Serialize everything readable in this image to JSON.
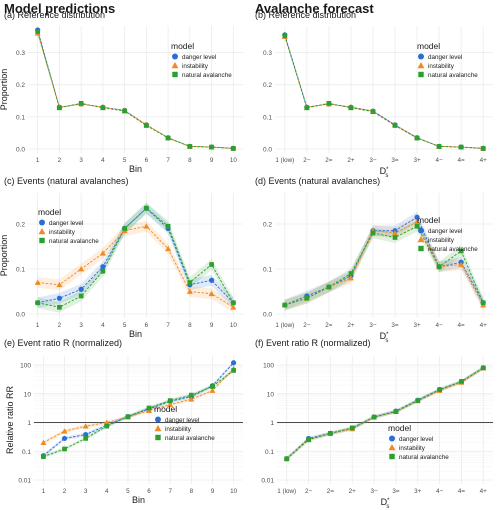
{
  "headers": {
    "left": "Model predictions",
    "right": "Avalanche forecast"
  },
  "legend_labels": {
    "title": "model",
    "items": [
      "danger level",
      "instability",
      "natural avalanche"
    ]
  },
  "colors": {
    "danger level": "#2b6fd6",
    "instability": "#f08a24",
    "natural avalanche": "#2ca02c",
    "grid": "#ebebeb",
    "refline": "#333333"
  },
  "chart_data": [
    {
      "id": "a",
      "type": "line",
      "title": "(a) Reference distribution",
      "xlabel": "Bin",
      "ylabel": "Proportion",
      "categories": [
        "1",
        "2",
        "3",
        "4",
        "5",
        "6",
        "7",
        "8",
        "9",
        "10"
      ],
      "ylim": [
        0,
        0.37
      ],
      "yticks": [
        0,
        0.1,
        0.2,
        0.3
      ],
      "ytick_labels": [
        "0.0",
        "0.1",
        "0.2",
        "0.3"
      ],
      "legend": "inside",
      "ribbon": false,
      "series": [
        {
          "name": "danger level",
          "values": [
            0.37,
            0.13,
            0.14,
            0.13,
            0.12,
            0.075,
            0.035,
            0.008,
            0.006,
            0.002
          ]
        },
        {
          "name": "instability",
          "values": [
            0.36,
            0.13,
            0.14,
            0.13,
            0.12,
            0.075,
            0.035,
            0.008,
            0.006,
            0.002
          ]
        },
        {
          "name": "natural avalanche",
          "values": [
            0.365,
            0.128,
            0.142,
            0.128,
            0.118,
            0.073,
            0.034,
            0.008,
            0.006,
            0.002
          ]
        }
      ]
    },
    {
      "id": "b",
      "type": "line",
      "title": "(b) Reference distribution",
      "xlabel": "D_s^*",
      "ylabel": "",
      "categories": [
        "1 (low)",
        "2−",
        "2=",
        "2+",
        "3−",
        "3=",
        "3+",
        "4−",
        "4=",
        "4+"
      ],
      "ylim": [
        0,
        0.37
      ],
      "yticks": [
        0,
        0.1,
        0.2,
        0.3
      ],
      "ytick_labels": [
        "0.0",
        "0.1",
        "0.2",
        "0.3"
      ],
      "legend": "inside",
      "ribbon": false,
      "series": [
        {
          "name": "danger level",
          "values": [
            0.355,
            0.13,
            0.14,
            0.13,
            0.118,
            0.075,
            0.035,
            0.008,
            0.006,
            0.002
          ]
        },
        {
          "name": "instability",
          "values": [
            0.35,
            0.13,
            0.14,
            0.13,
            0.118,
            0.075,
            0.035,
            0.008,
            0.006,
            0.002
          ]
        },
        {
          "name": "natural avalanche",
          "values": [
            0.352,
            0.128,
            0.142,
            0.128,
            0.116,
            0.073,
            0.034,
            0.008,
            0.006,
            0.002
          ]
        }
      ]
    },
    {
      "id": "c",
      "type": "line",
      "title": "(c) Events (natural avalanches)",
      "xlabel": "Bin",
      "ylabel": "Proportion",
      "categories": [
        "1",
        "2",
        "3",
        "4",
        "5",
        "6",
        "7",
        "8",
        "9",
        "10"
      ],
      "ylim": [
        0,
        0.26
      ],
      "yticks": [
        0,
        0.1,
        0.2
      ],
      "ytick_labels": [
        "0.0",
        "0.1",
        "0.2"
      ],
      "legend": "inside",
      "ribbon": true,
      "series": [
        {
          "name": "danger level",
          "values": [
            0.025,
            0.035,
            0.055,
            0.105,
            0.19,
            0.235,
            0.19,
            0.065,
            0.075,
            0.025
          ]
        },
        {
          "name": "instability",
          "values": [
            0.07,
            0.065,
            0.1,
            0.135,
            0.185,
            0.195,
            0.145,
            0.05,
            0.045,
            0.015
          ]
        },
        {
          "name": "natural avalanche",
          "values": [
            0.025,
            0.015,
            0.04,
            0.095,
            0.19,
            0.235,
            0.195,
            0.07,
            0.11,
            0.025
          ]
        }
      ]
    },
    {
      "id": "d",
      "type": "line",
      "title": "(d) Events (natural avalanches)",
      "xlabel": "D_s^*",
      "ylabel": "",
      "categories": [
        "1 (low)",
        "2−",
        "2=",
        "2+",
        "3−",
        "3=",
        "3+",
        "4−",
        "4=",
        "4+"
      ],
      "ylim": [
        0,
        0.26
      ],
      "yticks": [
        0,
        0.1,
        0.2
      ],
      "ytick_labels": [
        "0.0",
        "0.1",
        "0.2"
      ],
      "legend": "inside",
      "ribbon": true,
      "series": [
        {
          "name": "danger level",
          "values": [
            0.02,
            0.04,
            0.06,
            0.085,
            0.185,
            0.185,
            0.215,
            0.105,
            0.115,
            0.025
          ]
        },
        {
          "name": "instability",
          "values": [
            0.02,
            0.035,
            0.06,
            0.08,
            0.185,
            0.18,
            0.205,
            0.105,
            0.11,
            0.02
          ]
        },
        {
          "name": "natural avalanche",
          "values": [
            0.02,
            0.035,
            0.06,
            0.09,
            0.18,
            0.17,
            0.195,
            0.105,
            0.14,
            0.025
          ]
        }
      ]
    },
    {
      "id": "e",
      "type": "line",
      "title": "(e) Event ratio R (normalized)",
      "xlabel": "Bin",
      "ylabel": "Relative ratio RR",
      "categories": [
        "1",
        "2",
        "3",
        "4",
        "5",
        "6",
        "7",
        "8",
        "9",
        "10"
      ],
      "scale": "log",
      "ylim": [
        0.01,
        150
      ],
      "yticks": [
        0.01,
        0.1,
        1,
        10,
        100
      ],
      "ytick_labels": [
        "0.01",
        "0.1",
        "1",
        "10",
        "100"
      ],
      "refline": 1,
      "legend": "bottom-right",
      "ribbon": true,
      "series": [
        {
          "name": "danger level",
          "values": [
            0.07,
            0.28,
            0.38,
            0.8,
            1.6,
            3.0,
            5.5,
            8.0,
            19,
            120
          ]
        },
        {
          "name": "instability",
          "values": [
            0.2,
            0.5,
            0.75,
            1.0,
            1.55,
            2.6,
            4.2,
            6.5,
            13,
            75
          ]
        },
        {
          "name": "natural avalanche",
          "values": [
            0.065,
            0.12,
            0.28,
            0.75,
            1.6,
            3.2,
            5.8,
            9.0,
            18,
            65
          ]
        }
      ]
    },
    {
      "id": "f",
      "type": "line",
      "title": "(f) Event ratio R (normalized)",
      "xlabel": "D_s^*",
      "ylabel": "",
      "categories": [
        "1 (low)",
        "2−",
        "2=",
        "2+",
        "3−",
        "3=",
        "3+",
        "4−",
        "4=",
        "4+"
      ],
      "scale": "log",
      "ylim": [
        0.01,
        150
      ],
      "yticks": [
        0.01,
        0.1,
        1,
        10,
        100
      ],
      "ytick_labels": [
        "0.01",
        "0.1",
        "1",
        "10",
        "100"
      ],
      "refline": 1,
      "legend": "right-middle",
      "ribbon": true,
      "series": [
        {
          "name": "danger level",
          "values": [
            0.055,
            0.28,
            0.42,
            0.62,
            1.55,
            2.5,
            6.0,
            14,
            26,
            80
          ]
        },
        {
          "name": "instability",
          "values": [
            0.055,
            0.26,
            0.42,
            0.6,
            1.55,
            2.4,
            5.7,
            13,
            25,
            78
          ]
        },
        {
          "name": "natural avalanche",
          "values": [
            0.055,
            0.25,
            0.42,
            0.65,
            1.55,
            2.4,
            5.8,
            14,
            27,
            80
          ]
        }
      ]
    }
  ]
}
